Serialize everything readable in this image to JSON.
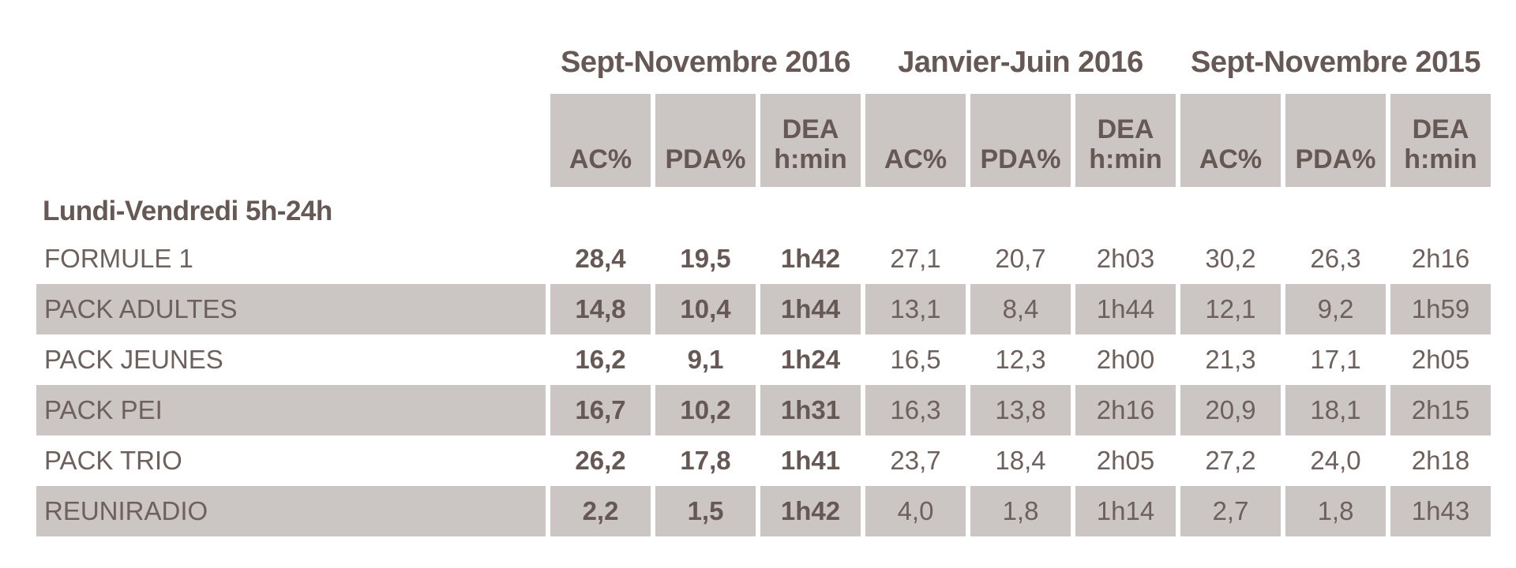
{
  "colors": {
    "background": "#ffffff",
    "band": "#cbc5c4",
    "heading_text": "#665854",
    "body_text": "#6d615e"
  },
  "table": {
    "period_groups": [
      "Sept-Novembre 2016",
      "Janvier-Juin 2016",
      "Sept-Novembre 2015"
    ],
    "sub_columns": [
      "AC%",
      "PDA%",
      "DEA\nh:min"
    ],
    "section_label": "Lundi-Vendredi 5h-24h",
    "rows": [
      {
        "label": "FORMULE 1",
        "values": [
          "28,4",
          "19,5",
          "1h42",
          "27,1",
          "20,7",
          "2h03",
          "30,2",
          "26,3",
          "2h16"
        ]
      },
      {
        "label": "PACK ADULTES",
        "values": [
          "14,8",
          "10,4",
          "1h44",
          "13,1",
          "8,4",
          "1h44",
          "12,1",
          "9,2",
          "1h59"
        ]
      },
      {
        "label": "PACK JEUNES",
        "values": [
          "16,2",
          "9,1",
          "1h24",
          "16,5",
          "12,3",
          "2h00",
          "21,3",
          "17,1",
          "2h05"
        ]
      },
      {
        "label": "PACK PEI",
        "values": [
          "16,7",
          "10,2",
          "1h31",
          "16,3",
          "13,8",
          "2h16",
          "20,9",
          "18,1",
          "2h15"
        ]
      },
      {
        "label": "PACK TRIO",
        "values": [
          "26,2",
          "17,8",
          "1h41",
          "23,7",
          "18,4",
          "2h05",
          "27,2",
          "24,0",
          "2h18"
        ]
      },
      {
        "label": "REUNIRADIO",
        "values": [
          "2,2",
          "1,5",
          "1h42",
          "4,0",
          "1,8",
          "1h14",
          "2,7",
          "1,8",
          "1h43"
        ]
      }
    ]
  }
}
